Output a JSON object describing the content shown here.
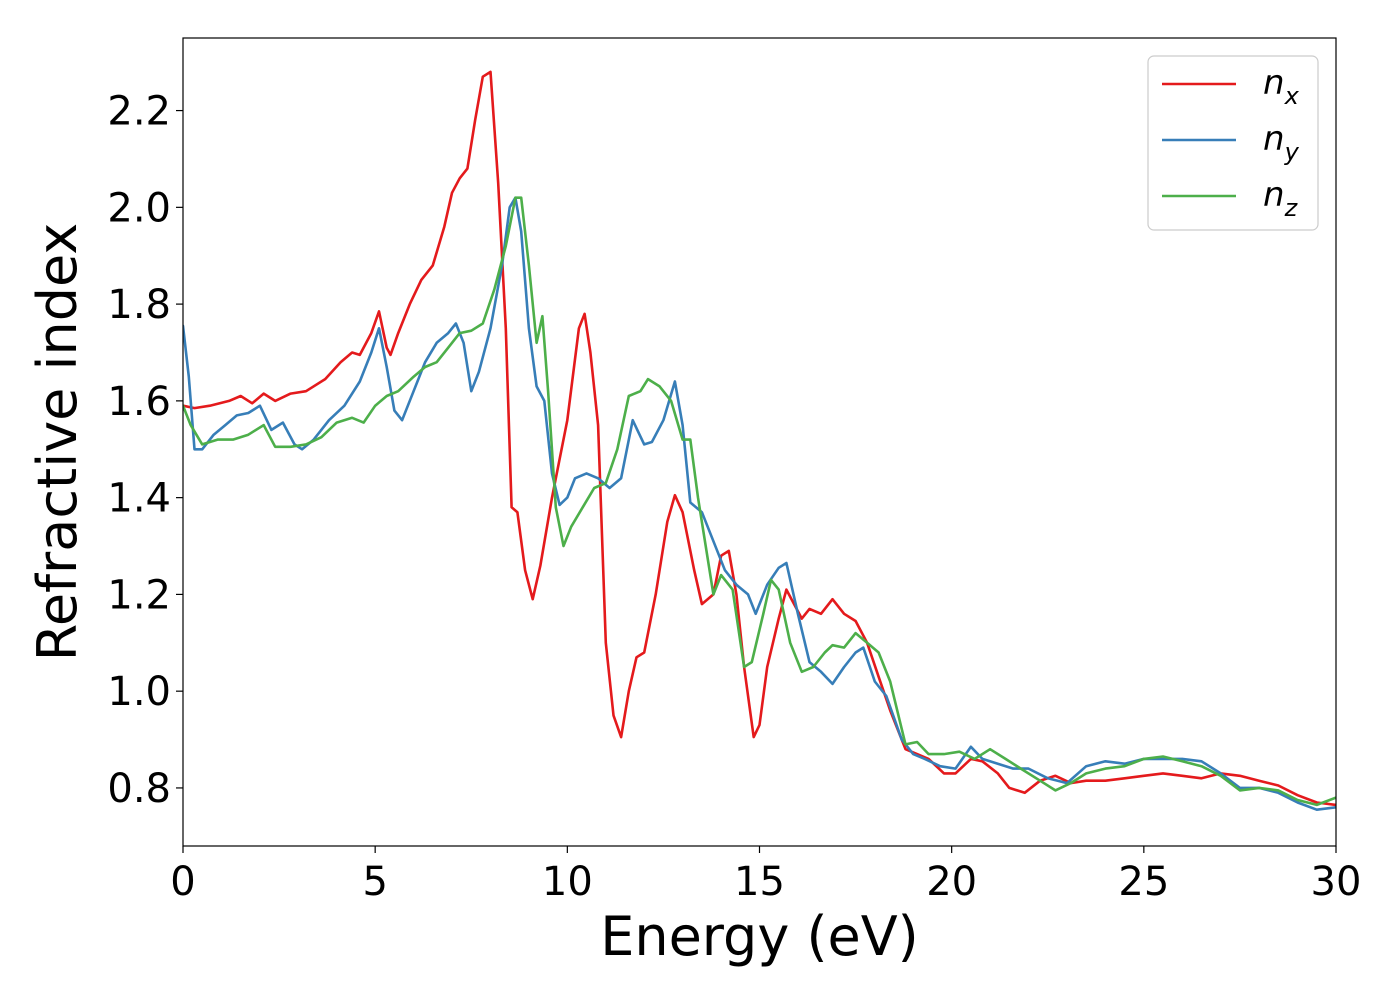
{
  "chart_data": {
    "type": "line",
    "xlabel": "Energy (eV)",
    "ylabel": "Refractive index",
    "xlim": [
      0,
      30
    ],
    "ylim": [
      0.68,
      2.35
    ],
    "xticks": [
      0,
      5,
      10,
      15,
      20,
      25,
      30
    ],
    "xtick_labels": [
      "0",
      "5",
      "10",
      "15",
      "20",
      "25",
      "30"
    ],
    "yticks": [
      0.8,
      1.0,
      1.2,
      1.4,
      1.6,
      1.8,
      2.0,
      2.2
    ],
    "ytick_labels": [
      "0.8",
      "1.0",
      "1.2",
      "1.4",
      "1.6",
      "1.8",
      "2.0",
      "2.2"
    ],
    "grid": false,
    "legend_position": "top-right",
    "series": [
      {
        "name": "n_x",
        "label_base": "n",
        "label_sub": "x",
        "color": "#e41a1c",
        "points": [
          [
            0,
            1.59
          ],
          [
            0.3,
            1.585
          ],
          [
            0.7,
            1.59
          ],
          [
            1.2,
            1.6
          ],
          [
            1.5,
            1.61
          ],
          [
            1.8,
            1.595
          ],
          [
            2.1,
            1.615
          ],
          [
            2.4,
            1.6
          ],
          [
            2.8,
            1.615
          ],
          [
            3.2,
            1.62
          ],
          [
            3.7,
            1.645
          ],
          [
            4.1,
            1.68
          ],
          [
            4.4,
            1.7
          ],
          [
            4.6,
            1.695
          ],
          [
            4.9,
            1.74
          ],
          [
            5.1,
            1.785
          ],
          [
            5.3,
            1.71
          ],
          [
            5.4,
            1.695
          ],
          [
            5.6,
            1.74
          ],
          [
            5.9,
            1.8
          ],
          [
            6.2,
            1.85
          ],
          [
            6.5,
            1.88
          ],
          [
            6.8,
            1.96
          ],
          [
            7.0,
            2.03
          ],
          [
            7.2,
            2.06
          ],
          [
            7.4,
            2.08
          ],
          [
            7.6,
            2.18
          ],
          [
            7.8,
            2.27
          ],
          [
            8.0,
            2.28
          ],
          [
            8.2,
            2.05
          ],
          [
            8.4,
            1.75
          ],
          [
            8.55,
            1.38
          ],
          [
            8.7,
            1.37
          ],
          [
            8.9,
            1.25
          ],
          [
            9.1,
            1.19
          ],
          [
            9.3,
            1.26
          ],
          [
            9.6,
            1.4
          ],
          [
            10.0,
            1.56
          ],
          [
            10.3,
            1.75
          ],
          [
            10.45,
            1.78
          ],
          [
            10.6,
            1.7
          ],
          [
            10.8,
            1.55
          ],
          [
            11.0,
            1.1
          ],
          [
            11.2,
            0.95
          ],
          [
            11.4,
            0.905
          ],
          [
            11.6,
            1.0
          ],
          [
            11.8,
            1.07
          ],
          [
            12.0,
            1.08
          ],
          [
            12.3,
            1.2
          ],
          [
            12.6,
            1.35
          ],
          [
            12.8,
            1.405
          ],
          [
            13.0,
            1.37
          ],
          [
            13.3,
            1.25
          ],
          [
            13.5,
            1.18
          ],
          [
            13.8,
            1.2
          ],
          [
            14.0,
            1.28
          ],
          [
            14.2,
            1.29
          ],
          [
            14.4,
            1.2
          ],
          [
            14.6,
            1.05
          ],
          [
            14.85,
            0.905
          ],
          [
            15.0,
            0.93
          ],
          [
            15.2,
            1.05
          ],
          [
            15.5,
            1.15
          ],
          [
            15.7,
            1.21
          ],
          [
            15.9,
            1.18
          ],
          [
            16.1,
            1.15
          ],
          [
            16.3,
            1.17
          ],
          [
            16.6,
            1.16
          ],
          [
            16.9,
            1.19
          ],
          [
            17.2,
            1.16
          ],
          [
            17.5,
            1.145
          ],
          [
            17.8,
            1.1
          ],
          [
            18.1,
            1.03
          ],
          [
            18.4,
            0.96
          ],
          [
            18.8,
            0.88
          ],
          [
            19.1,
            0.87
          ],
          [
            19.4,
            0.86
          ],
          [
            19.8,
            0.83
          ],
          [
            20.1,
            0.83
          ],
          [
            20.5,
            0.86
          ],
          [
            20.8,
            0.855
          ],
          [
            21.2,
            0.83
          ],
          [
            21.5,
            0.8
          ],
          [
            21.9,
            0.79
          ],
          [
            22.3,
            0.815
          ],
          [
            22.7,
            0.825
          ],
          [
            23.1,
            0.81
          ],
          [
            23.5,
            0.815
          ],
          [
            24.0,
            0.815
          ],
          [
            24.5,
            0.82
          ],
          [
            25.0,
            0.825
          ],
          [
            25.5,
            0.83
          ],
          [
            26.0,
            0.825
          ],
          [
            26.5,
            0.82
          ],
          [
            27.0,
            0.83
          ],
          [
            27.5,
            0.825
          ],
          [
            28.0,
            0.815
          ],
          [
            28.5,
            0.805
          ],
          [
            29.0,
            0.785
          ],
          [
            29.5,
            0.77
          ],
          [
            30.0,
            0.765
          ]
        ]
      },
      {
        "name": "n_y",
        "label_base": "n",
        "label_sub": "y",
        "color": "#377eb8",
        "points": [
          [
            0,
            1.755
          ],
          [
            0.15,
            1.65
          ],
          [
            0.3,
            1.5
          ],
          [
            0.5,
            1.5
          ],
          [
            0.8,
            1.53
          ],
          [
            1.1,
            1.55
          ],
          [
            1.4,
            1.57
          ],
          [
            1.7,
            1.575
          ],
          [
            2.0,
            1.59
          ],
          [
            2.3,
            1.54
          ],
          [
            2.6,
            1.555
          ],
          [
            2.9,
            1.51
          ],
          [
            3.1,
            1.5
          ],
          [
            3.4,
            1.52
          ],
          [
            3.8,
            1.56
          ],
          [
            4.2,
            1.59
          ],
          [
            4.6,
            1.64
          ],
          [
            4.9,
            1.7
          ],
          [
            5.1,
            1.75
          ],
          [
            5.3,
            1.67
          ],
          [
            5.5,
            1.58
          ],
          [
            5.7,
            1.56
          ],
          [
            6.0,
            1.62
          ],
          [
            6.3,
            1.68
          ],
          [
            6.6,
            1.72
          ],
          [
            6.9,
            1.74
          ],
          [
            7.1,
            1.76
          ],
          [
            7.3,
            1.72
          ],
          [
            7.5,
            1.62
          ],
          [
            7.7,
            1.66
          ],
          [
            8.0,
            1.75
          ],
          [
            8.3,
            1.88
          ],
          [
            8.5,
            2.0
          ],
          [
            8.65,
            2.02
          ],
          [
            8.8,
            1.95
          ],
          [
            9.0,
            1.75
          ],
          [
            9.2,
            1.63
          ],
          [
            9.4,
            1.6
          ],
          [
            9.6,
            1.45
          ],
          [
            9.8,
            1.385
          ],
          [
            10.0,
            1.4
          ],
          [
            10.2,
            1.44
          ],
          [
            10.5,
            1.45
          ],
          [
            10.8,
            1.44
          ],
          [
            11.1,
            1.42
          ],
          [
            11.4,
            1.44
          ],
          [
            11.7,
            1.56
          ],
          [
            12.0,
            1.51
          ],
          [
            12.2,
            1.515
          ],
          [
            12.5,
            1.56
          ],
          [
            12.8,
            1.64
          ],
          [
            13.0,
            1.55
          ],
          [
            13.2,
            1.39
          ],
          [
            13.5,
            1.37
          ],
          [
            13.8,
            1.31
          ],
          [
            14.1,
            1.25
          ],
          [
            14.4,
            1.22
          ],
          [
            14.7,
            1.2
          ],
          [
            14.9,
            1.16
          ],
          [
            15.2,
            1.22
          ],
          [
            15.5,
            1.255
          ],
          [
            15.7,
            1.265
          ],
          [
            16.0,
            1.16
          ],
          [
            16.3,
            1.06
          ],
          [
            16.6,
            1.04
          ],
          [
            16.9,
            1.015
          ],
          [
            17.2,
            1.05
          ],
          [
            17.5,
            1.08
          ],
          [
            17.7,
            1.09
          ],
          [
            18.0,
            1.02
          ],
          [
            18.3,
            0.99
          ],
          [
            18.7,
            0.9
          ],
          [
            19.0,
            0.87
          ],
          [
            19.3,
            0.86
          ],
          [
            19.7,
            0.845
          ],
          [
            20.1,
            0.84
          ],
          [
            20.5,
            0.885
          ],
          [
            20.8,
            0.86
          ],
          [
            21.2,
            0.85
          ],
          [
            21.6,
            0.84
          ],
          [
            22.0,
            0.84
          ],
          [
            22.5,
            0.82
          ],
          [
            23.0,
            0.81
          ],
          [
            23.5,
            0.845
          ],
          [
            24.0,
            0.855
          ],
          [
            24.5,
            0.85
          ],
          [
            25.0,
            0.86
          ],
          [
            25.5,
            0.86
          ],
          [
            26.0,
            0.86
          ],
          [
            26.5,
            0.855
          ],
          [
            27.0,
            0.83
          ],
          [
            27.5,
            0.8
          ],
          [
            28.0,
            0.8
          ],
          [
            28.5,
            0.79
          ],
          [
            29.0,
            0.77
          ],
          [
            29.5,
            0.755
          ],
          [
            30.0,
            0.76
          ]
        ]
      },
      {
        "name": "n_z",
        "label_base": "n",
        "label_sub": "z",
        "color": "#4daf4a",
        "points": [
          [
            0,
            1.59
          ],
          [
            0.2,
            1.55
          ],
          [
            0.5,
            1.51
          ],
          [
            0.9,
            1.52
          ],
          [
            1.3,
            1.52
          ],
          [
            1.7,
            1.53
          ],
          [
            2.1,
            1.55
          ],
          [
            2.4,
            1.505
          ],
          [
            2.8,
            1.505
          ],
          [
            3.2,
            1.51
          ],
          [
            3.6,
            1.525
          ],
          [
            4.0,
            1.555
          ],
          [
            4.4,
            1.565
          ],
          [
            4.7,
            1.555
          ],
          [
            5.0,
            1.59
          ],
          [
            5.3,
            1.61
          ],
          [
            5.6,
            1.62
          ],
          [
            6.0,
            1.65
          ],
          [
            6.3,
            1.67
          ],
          [
            6.6,
            1.68
          ],
          [
            6.9,
            1.71
          ],
          [
            7.2,
            1.74
          ],
          [
            7.5,
            1.745
          ],
          [
            7.8,
            1.76
          ],
          [
            8.1,
            1.83
          ],
          [
            8.4,
            1.92
          ],
          [
            8.65,
            2.02
          ],
          [
            8.8,
            2.02
          ],
          [
            9.0,
            1.88
          ],
          [
            9.2,
            1.72
          ],
          [
            9.35,
            1.775
          ],
          [
            9.5,
            1.62
          ],
          [
            9.7,
            1.38
          ],
          [
            9.9,
            1.3
          ],
          [
            10.1,
            1.34
          ],
          [
            10.4,
            1.38
          ],
          [
            10.7,
            1.42
          ],
          [
            11.0,
            1.43
          ],
          [
            11.3,
            1.5
          ],
          [
            11.6,
            1.61
          ],
          [
            11.9,
            1.62
          ],
          [
            12.1,
            1.645
          ],
          [
            12.4,
            1.63
          ],
          [
            12.7,
            1.6
          ],
          [
            13.0,
            1.52
          ],
          [
            13.2,
            1.52
          ],
          [
            13.4,
            1.4
          ],
          [
            13.6,
            1.3
          ],
          [
            13.8,
            1.2
          ],
          [
            14.0,
            1.24
          ],
          [
            14.3,
            1.21
          ],
          [
            14.6,
            1.05
          ],
          [
            14.8,
            1.06
          ],
          [
            15.1,
            1.16
          ],
          [
            15.3,
            1.23
          ],
          [
            15.5,
            1.21
          ],
          [
            15.8,
            1.1
          ],
          [
            16.1,
            1.04
          ],
          [
            16.4,
            1.05
          ],
          [
            16.7,
            1.08
          ],
          [
            16.9,
            1.095
          ],
          [
            17.2,
            1.09
          ],
          [
            17.5,
            1.12
          ],
          [
            17.8,
            1.1
          ],
          [
            18.1,
            1.08
          ],
          [
            18.4,
            1.02
          ],
          [
            18.8,
            0.89
          ],
          [
            19.1,
            0.895
          ],
          [
            19.4,
            0.87
          ],
          [
            19.8,
            0.87
          ],
          [
            20.2,
            0.875
          ],
          [
            20.6,
            0.86
          ],
          [
            21.0,
            0.88
          ],
          [
            21.4,
            0.86
          ],
          [
            21.8,
            0.84
          ],
          [
            22.3,
            0.815
          ],
          [
            22.7,
            0.795
          ],
          [
            23.1,
            0.81
          ],
          [
            23.5,
            0.83
          ],
          [
            24.0,
            0.84
          ],
          [
            24.5,
            0.845
          ],
          [
            25.0,
            0.86
          ],
          [
            25.5,
            0.865
          ],
          [
            26.0,
            0.855
          ],
          [
            26.5,
            0.845
          ],
          [
            27.0,
            0.825
          ],
          [
            27.5,
            0.795
          ],
          [
            28.0,
            0.8
          ],
          [
            28.5,
            0.795
          ],
          [
            29.0,
            0.775
          ],
          [
            29.5,
            0.765
          ],
          [
            30.0,
            0.78
          ]
        ]
      }
    ]
  }
}
